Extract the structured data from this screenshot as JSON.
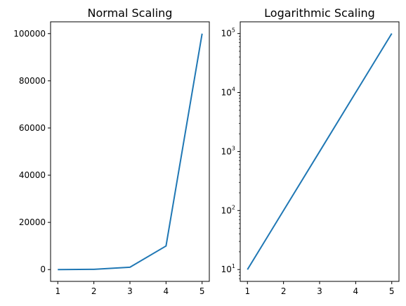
{
  "chart_data": [
    {
      "type": "line",
      "title": "Normal Scaling",
      "xlabel": "",
      "ylabel": "",
      "yscale": "linear",
      "x": [
        1,
        2,
        3,
        4,
        5
      ],
      "series": [
        {
          "values": [
            10,
            100,
            1000,
            10000,
            100000
          ],
          "color": "#1f77b4"
        }
      ],
      "xlim": [
        0.8,
        5.2
      ],
      "ylim": [
        -5000,
        105000
      ],
      "xticks": [
        1,
        2,
        3,
        4,
        5
      ],
      "xtick_labels": [
        "1",
        "2",
        "3",
        "4",
        "5"
      ],
      "yticks": [
        0,
        20000,
        40000,
        60000,
        80000,
        100000
      ],
      "ytick_labels": [
        "0",
        "20000",
        "40000",
        "60000",
        "80000",
        "100000"
      ],
      "grid": false
    },
    {
      "type": "line",
      "title": "Logarithmic Scaling",
      "xlabel": "",
      "ylabel": "",
      "yscale": "log",
      "x": [
        1,
        2,
        3,
        4,
        5
      ],
      "series": [
        {
          "values": [
            10,
            100,
            1000,
            10000,
            100000
          ],
          "color": "#1f77b4"
        }
      ],
      "xlim": [
        0.8,
        5.2
      ],
      "ylim": [
        6.3,
        158000
      ],
      "xticks": [
        1,
        2,
        3,
        4,
        5
      ],
      "xtick_labels": [
        "1",
        "2",
        "3",
        "4",
        "5"
      ],
      "yticks": [
        10,
        100,
        1000,
        10000,
        100000
      ],
      "ytick_labels": [
        {
          "base": "10",
          "exp": "1"
        },
        {
          "base": "10",
          "exp": "2"
        },
        {
          "base": "10",
          "exp": "3"
        },
        {
          "base": "10",
          "exp": "4"
        },
        {
          "base": "10",
          "exp": "5"
        }
      ],
      "grid": false
    }
  ]
}
